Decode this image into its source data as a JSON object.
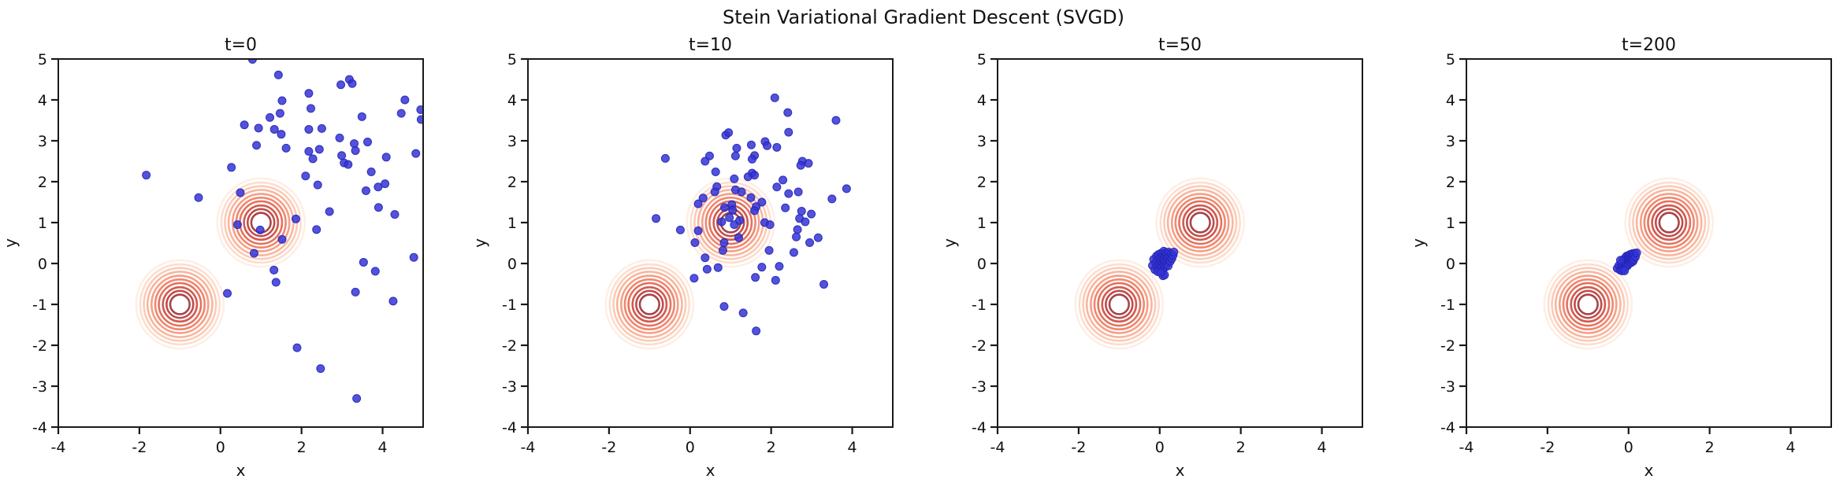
{
  "figure": {
    "suptitle": "Stein Variational Gradient Descent (SVGD)",
    "background": "#ffffff"
  },
  "style": {
    "particle_fill": "#3434d6",
    "particle_edge": "#2424b4",
    "particle_opacity": 0.85,
    "spine_color": "#1a1a1a",
    "contour_colors_inner_to_outer": [
      "#a23a3e",
      "#bc4340",
      "#d15147",
      "#e36a54",
      "#ef8167",
      "#f69a7e",
      "#f9b197",
      "#fbc8b2",
      "#fcdccc",
      "#fdeee4"
    ],
    "contour_radii_inner_to_outer": [
      0.24,
      0.33,
      0.42,
      0.52,
      0.61,
      0.7,
      0.8,
      0.89,
      0.98,
      1.08
    ]
  },
  "chart_data": [
    {
      "type": "scatter",
      "title": "t=0",
      "xlabel": "x",
      "ylabel": "y",
      "xlim": [
        -4,
        5
      ],
      "ylim": [
        -4,
        5
      ],
      "xticks": [
        -4,
        -2,
        0,
        2,
        4
      ],
      "yticks": [
        -4,
        -3,
        -2,
        -1,
        0,
        1,
        2,
        3,
        4,
        5
      ],
      "grid": false,
      "legend": null,
      "contours": {
        "centers": [
          [
            1,
            1
          ],
          [
            -1,
            -1
          ]
        ],
        "levels": 10,
        "max_radius": 1.08,
        "colormap": "Reds"
      },
      "series": [
        {
          "name": "particles",
          "points": [
            [
              0.79,
              4.99
            ],
            [
              1.43,
              4.61
            ],
            [
              2.97,
              4.37
            ],
            [
              3.18,
              4.5
            ],
            [
              3.25,
              4.4
            ],
            [
              2.18,
              4.16
            ],
            [
              1.52,
              3.98
            ],
            [
              4.55,
              4.0
            ],
            [
              2.23,
              3.79
            ],
            [
              1.47,
              3.67
            ],
            [
              4.46,
              3.67
            ],
            [
              3.49,
              3.59
            ],
            [
              1.22,
              3.57
            ],
            [
              4.94,
              3.76
            ],
            [
              4.95,
              3.52
            ],
            [
              0.59,
              3.39
            ],
            [
              0.94,
              3.31
            ],
            [
              2.5,
              3.3
            ],
            [
              1.33,
              3.28
            ],
            [
              2.18,
              3.28
            ],
            [
              1.5,
              3.16
            ],
            [
              2.94,
              3.07
            ],
            [
              0.89,
              2.89
            ],
            [
              3.3,
              2.93
            ],
            [
              3.63,
              2.97
            ],
            [
              1.62,
              2.82
            ],
            [
              3.33,
              2.76
            ],
            [
              2.18,
              2.74
            ],
            [
              2.44,
              2.79
            ],
            [
              4.09,
              2.6
            ],
            [
              4.82,
              2.69
            ],
            [
              2.99,
              2.64
            ],
            [
              2.28,
              2.56
            ],
            [
              3.05,
              2.46
            ],
            [
              0.27,
              2.35
            ],
            [
              3.15,
              2.42
            ],
            [
              -1.83,
              2.16
            ],
            [
              2.1,
              2.14
            ],
            [
              3.72,
              2.24
            ],
            [
              3.89,
              1.87
            ],
            [
              2.4,
              1.92
            ],
            [
              3.59,
              1.78
            ],
            [
              4.06,
              1.95
            ],
            [
              0.49,
              1.73
            ],
            [
              -0.54,
              1.61
            ],
            [
              3.9,
              1.37
            ],
            [
              2.69,
              1.27
            ],
            [
              4.3,
              1.2
            ],
            [
              1.86,
              1.09
            ],
            [
              0.42,
              0.95
            ],
            [
              0.98,
              0.82
            ],
            [
              2.37,
              0.83
            ],
            [
              1.52,
              0.59
            ],
            [
              0.83,
              0.25
            ],
            [
              4.77,
              0.15
            ],
            [
              3.53,
              0.03
            ],
            [
              1.32,
              -0.16
            ],
            [
              3.82,
              -0.19
            ],
            [
              1.37,
              -0.46
            ],
            [
              0.17,
              -0.73
            ],
            [
              3.33,
              -0.7
            ],
            [
              4.26,
              -0.92
            ],
            [
              1.89,
              -2.06
            ],
            [
              2.47,
              -2.57
            ],
            [
              3.36,
              -3.3
            ]
          ]
        }
      ]
    },
    {
      "type": "scatter",
      "title": "t=10",
      "xlabel": "x",
      "ylabel": "y",
      "xlim": [
        -4,
        5
      ],
      "ylim": [
        -4,
        5
      ],
      "xticks": [
        -4,
        -2,
        0,
        2,
        4
      ],
      "yticks": [
        -4,
        -3,
        -2,
        -1,
        0,
        1,
        2,
        3,
        4,
        5
      ],
      "grid": false,
      "legend": null,
      "contours": {
        "centers": [
          [
            1,
            1
          ],
          [
            -1,
            -1
          ]
        ],
        "levels": 10,
        "max_radius": 1.08,
        "colormap": "Reds"
      },
      "series": [
        {
          "name": "particles",
          "points": [
            [
              2.09,
              4.05
            ],
            [
              2.41,
              3.69
            ],
            [
              3.6,
              3.5
            ],
            [
              2.43,
              3.21
            ],
            [
              0.88,
              3.14
            ],
            [
              0.95,
              3.2
            ],
            [
              1.51,
              2.9
            ],
            [
              1.85,
              2.98
            ],
            [
              1.9,
              2.88
            ],
            [
              1.15,
              2.82
            ],
            [
              2.14,
              2.84
            ],
            [
              1.12,
              2.63
            ],
            [
              -0.61,
              2.57
            ],
            [
              0.48,
              2.63
            ],
            [
              1.59,
              2.64
            ],
            [
              1.53,
              2.55
            ],
            [
              0.37,
              2.5
            ],
            [
              2.77,
              2.5
            ],
            [
              2.92,
              2.45
            ],
            [
              2.73,
              2.4
            ],
            [
              0.63,
              2.24
            ],
            [
              1.53,
              2.21
            ],
            [
              1.43,
              2.12
            ],
            [
              1.59,
              2.16
            ],
            [
              1.09,
              2.07
            ],
            [
              2.29,
              2.04
            ],
            [
              0.66,
              1.88
            ],
            [
              2.14,
              1.87
            ],
            [
              1.12,
              1.8
            ],
            [
              3.86,
              1.83
            ],
            [
              1.27,
              1.75
            ],
            [
              0.61,
              1.75
            ],
            [
              2.43,
              1.71
            ],
            [
              2.67,
              1.75
            ],
            [
              1.5,
              1.61
            ],
            [
              0.32,
              1.6
            ],
            [
              1.77,
              1.5
            ],
            [
              3.5,
              1.58
            ],
            [
              0.2,
              1.46
            ],
            [
              1.03,
              1.44
            ],
            [
              1.63,
              1.39
            ],
            [
              0.85,
              1.37
            ],
            [
              1.59,
              1.29
            ],
            [
              2.35,
              1.36
            ],
            [
              2.75,
              1.28
            ],
            [
              2.99,
              1.21
            ],
            [
              0.97,
              1.12
            ],
            [
              -0.84,
              1.1
            ],
            [
              2.7,
              1.1
            ],
            [
              2.84,
              1.02
            ],
            [
              1.09,
              0.95
            ],
            [
              1.84,
              1.0
            ],
            [
              1.97,
              0.95
            ],
            [
              1.05,
              1.3
            ],
            [
              1.22,
              1.05
            ],
            [
              0.78,
              1.02
            ],
            [
              -0.24,
              0.82
            ],
            [
              0.2,
              0.8
            ],
            [
              2.65,
              0.83
            ],
            [
              1.2,
              0.63
            ],
            [
              0.84,
              0.51
            ],
            [
              0.12,
              0.51
            ],
            [
              2.62,
              0.65
            ],
            [
              2.95,
              0.51
            ],
            [
              3.16,
              0.63
            ],
            [
              0.81,
              0.32
            ],
            [
              1.95,
              0.32
            ],
            [
              0.37,
              0.14
            ],
            [
              2.56,
              0.27
            ],
            [
              1.77,
              -0.09
            ],
            [
              2.2,
              -0.07
            ],
            [
              0.69,
              -0.1
            ],
            [
              0.42,
              -0.14
            ],
            [
              0.1,
              -0.36
            ],
            [
              1.61,
              -0.34
            ],
            [
              2.11,
              -0.41
            ],
            [
              3.3,
              -0.51
            ],
            [
              0.84,
              -1.05
            ],
            [
              1.31,
              -1.21
            ],
            [
              1.63,
              -1.65
            ]
          ]
        }
      ]
    },
    {
      "type": "scatter",
      "title": "t=50",
      "xlabel": "x",
      "ylabel": "y",
      "xlim": [
        -4,
        5
      ],
      "ylim": [
        -4,
        5
      ],
      "xticks": [
        -4,
        -2,
        0,
        2,
        4
      ],
      "yticks": [
        -4,
        -3,
        -2,
        -1,
        0,
        1,
        2,
        3,
        4,
        5
      ],
      "grid": false,
      "legend": null,
      "contours": {
        "centers": [
          [
            1,
            1
          ],
          [
            -1,
            -1
          ]
        ],
        "levels": 10,
        "max_radius": 1.08,
        "colormap": "Reds"
      },
      "series": [
        {
          "name": "particles",
          "points": [
            [
              -0.18,
              -0.05
            ],
            [
              -0.15,
              0.1
            ],
            [
              -0.12,
              -0.15
            ],
            [
              -0.1,
              0.02
            ],
            [
              -0.08,
              0.18
            ],
            [
              -0.06,
              -0.08
            ],
            [
              -0.05,
              0.08
            ],
            [
              -0.03,
              0.22
            ],
            [
              -0.02,
              -0.02
            ],
            [
              0.0,
              0.12
            ],
            [
              0.0,
              -0.12
            ],
            [
              0.02,
              0.05
            ],
            [
              0.03,
              0.25
            ],
            [
              0.04,
              -0.05
            ],
            [
              0.05,
              0.15
            ],
            [
              0.06,
              0.02
            ],
            [
              0.07,
              -0.18
            ],
            [
              0.08,
              0.1
            ],
            [
              0.09,
              0.22
            ],
            [
              0.1,
              -0.02
            ],
            [
              0.1,
              0.3
            ],
            [
              0.11,
              0.08
            ],
            [
              0.12,
              -0.1
            ],
            [
              0.13,
              0.18
            ],
            [
              0.14,
              0.04
            ],
            [
              0.15,
              0.26
            ],
            [
              0.16,
              -0.04
            ],
            [
              0.17,
              0.12
            ],
            [
              0.18,
              0.22
            ],
            [
              0.19,
              0.02
            ],
            [
              0.2,
              0.15
            ],
            [
              0.21,
              -0.06
            ],
            [
              0.22,
              0.28
            ],
            [
              0.23,
              0.08
            ],
            [
              0.25,
              0.18
            ],
            [
              0.26,
              0.05
            ],
            [
              0.28,
              0.24
            ],
            [
              0.3,
              0.12
            ],
            [
              0.33,
              0.2
            ],
            [
              0.35,
              0.28
            ],
            [
              0.08,
              -0.3
            ],
            [
              0.12,
              -0.28
            ],
            [
              -0.05,
              -0.2
            ],
            [
              0.02,
              -0.22
            ]
          ]
        }
      ]
    },
    {
      "type": "scatter",
      "title": "t=200",
      "xlabel": "x",
      "ylabel": "y",
      "xlim": [
        -4,
        5
      ],
      "ylim": [
        -4,
        5
      ],
      "xticks": [
        -4,
        -2,
        0,
        2,
        4
      ],
      "yticks": [
        -4,
        -3,
        -2,
        -1,
        0,
        1,
        2,
        3,
        4,
        5
      ],
      "grid": false,
      "legend": null,
      "contours": {
        "centers": [
          [
            1,
            1
          ],
          [
            -1,
            -1
          ]
        ],
        "levels": 10,
        "max_radius": 1.08,
        "colormap": "Reds"
      },
      "series": [
        {
          "name": "particles",
          "points": [
            [
              -0.28,
              -0.12
            ],
            [
              -0.24,
              -0.05
            ],
            [
              -0.21,
              -0.16
            ],
            [
              -0.18,
              0.0
            ],
            [
              -0.17,
              -0.1
            ],
            [
              -0.15,
              0.06
            ],
            [
              -0.14,
              -0.04
            ],
            [
              -0.12,
              0.1
            ],
            [
              -0.12,
              -0.14
            ],
            [
              -0.1,
              0.02
            ],
            [
              -0.09,
              -0.08
            ],
            [
              -0.08,
              0.14
            ],
            [
              -0.07,
              0.05
            ],
            [
              -0.06,
              -0.03
            ],
            [
              -0.05,
              0.18
            ],
            [
              -0.04,
              0.08
            ],
            [
              -0.03,
              -0.06
            ],
            [
              -0.02,
              0.12
            ],
            [
              -0.01,
              0.03
            ],
            [
              0.0,
              0.2
            ],
            [
              0.0,
              -0.02
            ],
            [
              0.01,
              0.08
            ],
            [
              0.02,
              0.15
            ],
            [
              0.03,
              0.04
            ],
            [
              0.04,
              0.22
            ],
            [
              0.05,
              0.1
            ],
            [
              0.06,
              0.02
            ],
            [
              0.07,
              0.16
            ],
            [
              0.08,
              0.08
            ],
            [
              0.09,
              0.24
            ],
            [
              0.1,
              0.14
            ],
            [
              0.11,
              0.05
            ],
            [
              0.12,
              0.2
            ],
            [
              0.13,
              0.1
            ],
            [
              0.15,
              0.25
            ],
            [
              0.17,
              0.16
            ],
            [
              -0.16,
              -0.18
            ],
            [
              -0.1,
              -0.18
            ],
            [
              -0.2,
              0.08
            ],
            [
              0.2,
              0.26
            ]
          ]
        }
      ]
    }
  ]
}
